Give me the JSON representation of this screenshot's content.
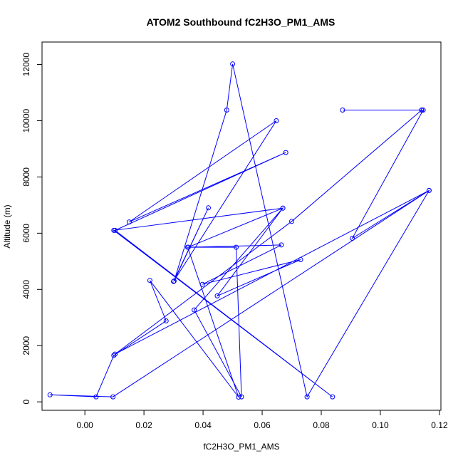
{
  "chart_data": {
    "type": "scatter",
    "title": "ATOM2 Southbound fC2H3O_PM1_AMS",
    "xlabel": "fC2H3O_PM1_AMS",
    "ylabel": "Altitude (m)",
    "xlim": [
      -0.0145,
      0.1205
    ],
    "ylim": [
      -300,
      12800
    ],
    "xticks": [
      0.0,
      0.02,
      0.04,
      0.06,
      0.08,
      0.1,
      0.12
    ],
    "xtick_labels": [
      "0.00",
      "0.02",
      "0.04",
      "0.06",
      "0.08",
      "0.10",
      "0.12"
    ],
    "yticks": [
      0,
      2000,
      4000,
      6000,
      8000,
      10000,
      12000
    ],
    "ytick_labels": [
      "0",
      "2000",
      "4000",
      "6000",
      "8000",
      "10000",
      "12000"
    ],
    "grid": false,
    "marker": "open-circle",
    "connected": true,
    "color": "#0000ff",
    "series": [
      {
        "x": [
          0.0872,
          0.114,
          0.1145,
          0.0905,
          0.1165,
          0.0095,
          -0.0118,
          0.0038,
          0.0098,
          0.0275,
          0.022,
          0.052,
          0.0348,
          0.0665,
          0.0398,
          0.073,
          0.0448,
          0.067,
          0.035,
          0.0512,
          0.053,
          0.037,
          0.067,
          0.0098,
          0.0838,
          0.0102,
          0.068,
          0.015,
          0.0648,
          0.03,
          0.0418,
          0.0302,
          0.048,
          0.05,
          0.0752,
          0.1165,
          0.0102,
          0.07,
          0.114
        ],
        "y": [
          10380,
          10380,
          10380,
          5820,
          7520,
          180,
          250,
          180,
          1650,
          2880,
          4320,
          170,
          5500,
          5580,
          4180,
          5060,
          3770,
          6890,
          5500,
          5500,
          180,
          3270,
          6890,
          6100,
          180,
          6100,
          8870,
          6400,
          10000,
          4280,
          6900,
          4300,
          10380,
          12020,
          180,
          7520,
          1700,
          6420,
          10380
        ]
      }
    ]
  }
}
